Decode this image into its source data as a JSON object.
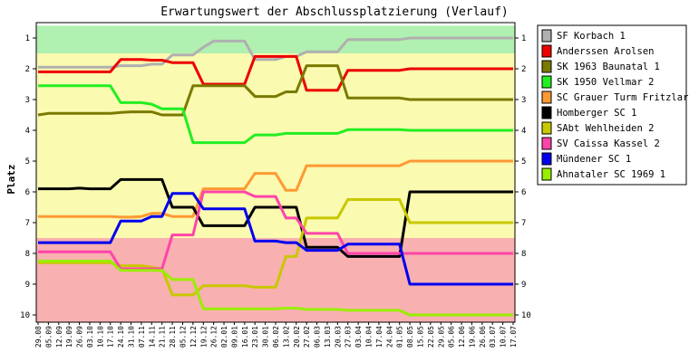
{
  "chart_data": {
    "type": "line",
    "title": "Erwartungswert der Abschlussplatzierung (Verlauf)",
    "ylabel": "Platz",
    "xlabel": "",
    "ylim": [
      1,
      10
    ],
    "y_inverted": true,
    "yticks": [
      1,
      2,
      3,
      4,
      5,
      6,
      7,
      8,
      9,
      10
    ],
    "grid": false,
    "legend_position": "right",
    "bands": [
      {
        "from": 0.6,
        "to": 1.5,
        "color": "#b0f0b0"
      },
      {
        "from": 1.5,
        "to": 7.5,
        "color": "#fafab0"
      },
      {
        "from": 7.5,
        "to": 10.4,
        "color": "#f8b0b0"
      }
    ],
    "x": [
      "29.08",
      "05.09",
      "12.09",
      "19.09",
      "26.09",
      "03.10",
      "10.10",
      "17.10",
      "24.10",
      "31.10",
      "07.11",
      "14.11",
      "21.11",
      "28.11",
      "05.12",
      "12.12",
      "19.12",
      "26.12",
      "02.01",
      "09.01",
      "16.01",
      "23.01",
      "30.01",
      "06.02",
      "13.02",
      "20.02",
      "27.02",
      "06.03",
      "13.03",
      "20.03",
      "27.03",
      "03.04",
      "10.04",
      "17.04",
      "24.04",
      "01.05",
      "08.05",
      "15.05",
      "22.05",
      "29.05",
      "05.06",
      "12.06",
      "19.06",
      "26.06",
      "03.07",
      "10.07",
      "17.07"
    ],
    "series": [
      {
        "name": "SF Korbach 1",
        "color": "#b0b0b0",
        "values": [
          1.95,
          1.95,
          1.95,
          1.95,
          1.95,
          1.95,
          1.95,
          1.95,
          1.9,
          1.9,
          1.9,
          1.85,
          1.85,
          1.55,
          1.55,
          1.55,
          1.3,
          1.1,
          1.1,
          1.1,
          1.1,
          1.7,
          1.7,
          1.7,
          1.6,
          1.6,
          1.45,
          1.45,
          1.45,
          1.45,
          1.05,
          1.05,
          1.05,
          1.05,
          1.05,
          1.05,
          1.0,
          1.0,
          1.0,
          1.0,
          1.0,
          1.0,
          1.0,
          1.0,
          1.0,
          1.0,
          1.0
        ]
      },
      {
        "name": "Anderssen Arolsen",
        "color": "#ee0000",
        "values": [
          2.1,
          2.1,
          2.1,
          2.1,
          2.1,
          2.1,
          2.1,
          2.1,
          1.7,
          1.7,
          1.7,
          1.72,
          1.72,
          1.8,
          1.8,
          1.8,
          2.5,
          2.5,
          2.5,
          2.5,
          2.5,
          1.6,
          1.6,
          1.6,
          1.6,
          1.6,
          2.7,
          2.7,
          2.7,
          2.7,
          2.05,
          2.05,
          2.05,
          2.05,
          2.05,
          2.05,
          2.0,
          2.0,
          2.0,
          2.0,
          2.0,
          2.0,
          2.0,
          2.0,
          2.0,
          2.0,
          2.0
        ]
      },
      {
        "name": "SK 1963 Baunatal 1",
        "color": "#7a7a00",
        "values": [
          3.5,
          3.45,
          3.45,
          3.45,
          3.45,
          3.45,
          3.45,
          3.45,
          3.42,
          3.4,
          3.4,
          3.4,
          3.5,
          3.5,
          3.5,
          2.55,
          2.55,
          2.55,
          2.55,
          2.55,
          2.55,
          2.9,
          2.9,
          2.9,
          2.75,
          2.75,
          1.9,
          1.9,
          1.9,
          1.9,
          2.95,
          2.95,
          2.95,
          2.95,
          2.95,
          2.95,
          3.0,
          3.0,
          3.0,
          3.0,
          3.0,
          3.0,
          3.0,
          3.0,
          3.0,
          3.0,
          3.0
        ]
      },
      {
        "name": "SK 1950 Vellmar 2",
        "color": "#22ee22",
        "values": [
          2.55,
          2.55,
          2.55,
          2.55,
          2.55,
          2.55,
          2.55,
          2.55,
          3.1,
          3.1,
          3.1,
          3.15,
          3.3,
          3.3,
          3.3,
          4.4,
          4.4,
          4.4,
          4.4,
          4.4,
          4.4,
          4.15,
          4.15,
          4.15,
          4.1,
          4.1,
          4.1,
          4.1,
          4.1,
          4.1,
          3.98,
          3.98,
          3.98,
          3.98,
          3.98,
          3.98,
          4.0,
          4.0,
          4.0,
          4.0,
          4.0,
          4.0,
          4.0,
          4.0,
          4.0,
          4.0,
          4.0
        ]
      },
      {
        "name": "SC Grauer Turm Fritzlar",
        "color": "#ff9933",
        "values": [
          6.8,
          6.8,
          6.8,
          6.8,
          6.8,
          6.8,
          6.8,
          6.8,
          6.82,
          6.82,
          6.8,
          6.7,
          6.7,
          6.8,
          6.8,
          6.8,
          5.9,
          5.9,
          5.9,
          5.9,
          5.9,
          5.4,
          5.4,
          5.4,
          5.95,
          5.95,
          5.15,
          5.15,
          5.15,
          5.15,
          5.15,
          5.15,
          5.15,
          5.15,
          5.15,
          5.15,
          5.0,
          5.0,
          5.0,
          5.0,
          5.0,
          5.0,
          5.0,
          5.0,
          5.0,
          5.0,
          5.0
        ]
      },
      {
        "name": "Homberger SC 1",
        "color": "#000000",
        "values": [
          5.9,
          5.9,
          5.9,
          5.9,
          5.88,
          5.9,
          5.9,
          5.9,
          5.6,
          5.6,
          5.6,
          5.6,
          5.6,
          6.5,
          6.5,
          6.5,
          7.1,
          7.1,
          7.1,
          7.1,
          7.1,
          6.5,
          6.5,
          6.5,
          6.5,
          6.5,
          7.8,
          7.8,
          7.8,
          7.8,
          8.1,
          8.1,
          8.1,
          8.1,
          8.1,
          8.1,
          6.0,
          6.0,
          6.0,
          6.0,
          6.0,
          6.0,
          6.0,
          6.0,
          6.0,
          6.0,
          6.0
        ]
      },
      {
        "name": "SAbt Wehlheiden 2",
        "color": "#c8c800",
        "values": [
          8.3,
          8.3,
          8.3,
          8.3,
          8.3,
          8.3,
          8.3,
          8.3,
          8.4,
          8.4,
          8.4,
          8.45,
          8.5,
          9.35,
          9.35,
          9.35,
          9.05,
          9.05,
          9.05,
          9.05,
          9.05,
          9.1,
          9.1,
          9.1,
          8.1,
          8.1,
          6.85,
          6.85,
          6.85,
          6.85,
          6.25,
          6.25,
          6.25,
          6.25,
          6.25,
          6.25,
          7.0,
          7.0,
          7.0,
          7.0,
          7.0,
          7.0,
          7.0,
          7.0,
          7.0,
          7.0,
          7.0
        ]
      },
      {
        "name": "SV Caissa Kassel 2",
        "color": "#ff44aa",
        "values": [
          7.95,
          7.95,
          7.95,
          7.95,
          7.95,
          7.95,
          7.95,
          7.95,
          8.5,
          8.5,
          8.5,
          8.5,
          8.5,
          7.4,
          7.4,
          7.4,
          6.0,
          6.0,
          6.0,
          6.0,
          6.0,
          6.15,
          6.15,
          6.15,
          6.85,
          6.85,
          7.35,
          7.35,
          7.35,
          7.35,
          8.0,
          8.0,
          8.0,
          8.0,
          8.0,
          8.0,
          8.0,
          8.0,
          8.0,
          8.0,
          8.0,
          8.0,
          8.0,
          8.0,
          8.0,
          8.0,
          8.0
        ]
      },
      {
        "name": "Mündener SC 1",
        "color": "#0000ee",
        "values": [
          7.65,
          7.65,
          7.65,
          7.65,
          7.65,
          7.65,
          7.65,
          7.65,
          6.95,
          6.95,
          6.95,
          6.8,
          6.8,
          6.05,
          6.05,
          6.05,
          6.55,
          6.55,
          6.55,
          6.55,
          6.55,
          7.6,
          7.6,
          7.6,
          7.65,
          7.65,
          7.9,
          7.9,
          7.9,
          7.9,
          7.7,
          7.7,
          7.7,
          7.7,
          7.7,
          7.7,
          9.0,
          9.0,
          9.0,
          9.0,
          9.0,
          9.0,
          9.0,
          9.0,
          9.0,
          9.0,
          9.0
        ]
      },
      {
        "name": "Ahnataler SC 1969 1",
        "color": "#99ee00",
        "values": [
          8.25,
          8.25,
          8.25,
          8.25,
          8.25,
          8.25,
          8.25,
          8.25,
          8.55,
          8.55,
          8.55,
          8.55,
          8.55,
          8.85,
          8.85,
          8.85,
          9.8,
          9.8,
          9.8,
          9.8,
          9.8,
          9.8,
          9.8,
          9.8,
          9.78,
          9.78,
          9.82,
          9.82,
          9.82,
          9.82,
          9.85,
          9.85,
          9.85,
          9.85,
          9.85,
          9.85,
          10.0,
          10.0,
          10.0,
          10.0,
          10.0,
          10.0,
          10.0,
          10.0,
          10.0,
          10.0,
          10.0
        ]
      }
    ]
  }
}
